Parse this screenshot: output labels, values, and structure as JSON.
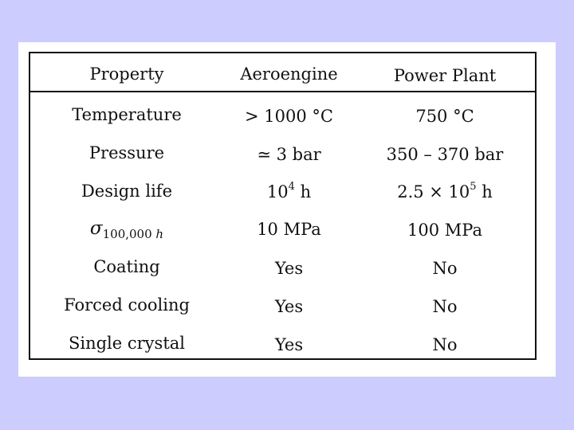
{
  "table": {
    "headers": [
      "Property",
      "Aeroengine",
      "Power Plant"
    ],
    "rows": [
      {
        "property": "Temperature",
        "aeroengine": "> 1000 °C",
        "power_plant": "750 °C"
      },
      {
        "property": "Pressure",
        "aeroengine": "≃ 3 bar",
        "power_plant": "350 – 370 bar"
      },
      {
        "property": "Design life",
        "aeroengine_base": "10",
        "aeroengine_exp": "4",
        "aeroengine_unit": " h",
        "power_plant_base": "2.5 × 10",
        "power_plant_exp": "5",
        "power_plant_unit": " h"
      },
      {
        "property_symbol": "σ",
        "property_subscript": "100,000",
        "property_subscript_unit": "h",
        "aeroengine": "10 MPa",
        "power_plant": "100 MPa"
      },
      {
        "property": "Coating",
        "aeroengine": "Yes",
        "power_plant": "No"
      },
      {
        "property": "Forced cooling",
        "aeroengine": "Yes",
        "power_plant": "No"
      },
      {
        "property": "Single crystal",
        "aeroengine": "Yes",
        "power_plant": "No"
      }
    ]
  }
}
